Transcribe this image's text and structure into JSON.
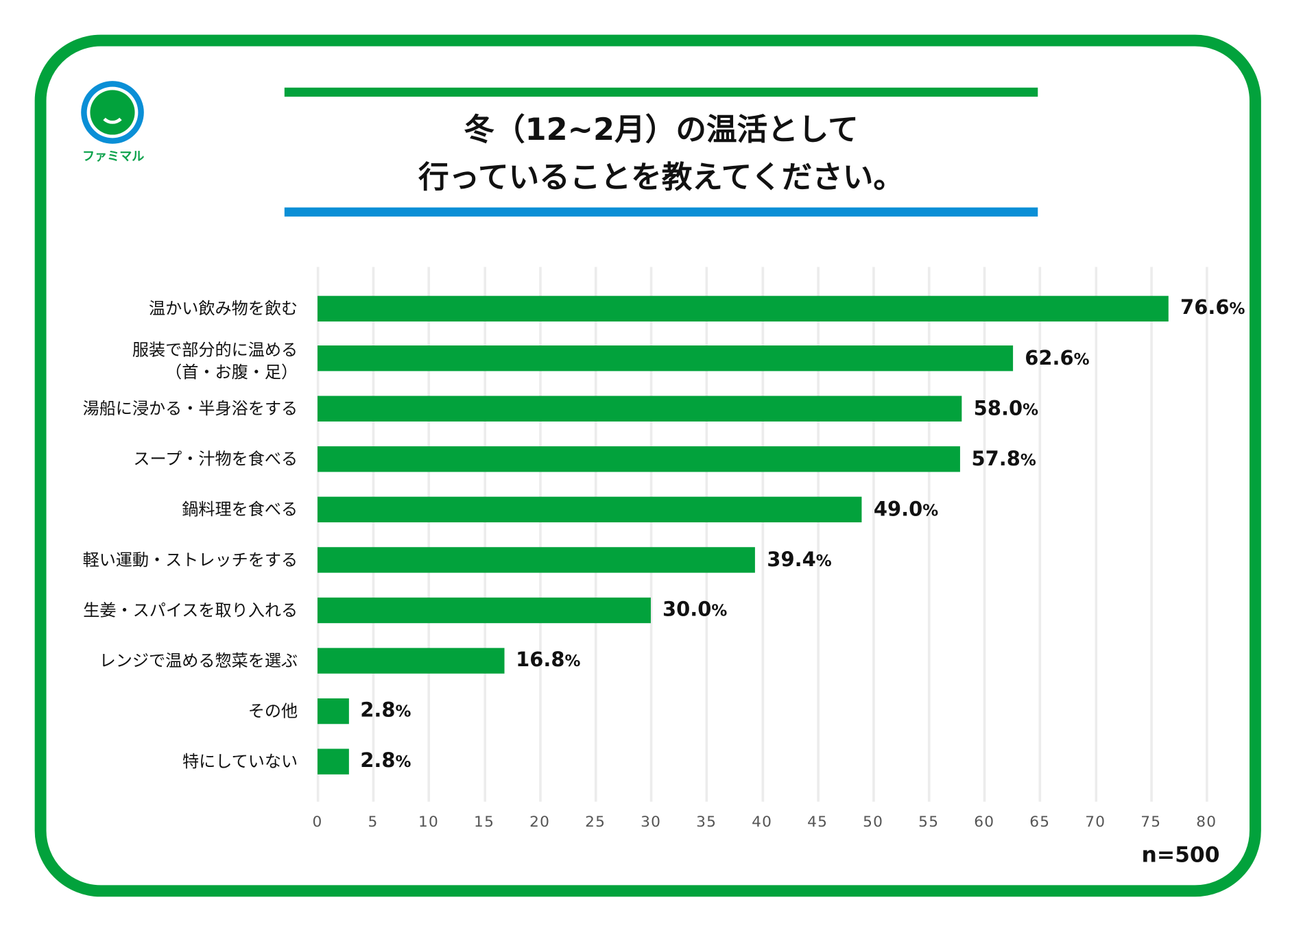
{
  "logo": {
    "text": "ファミマル"
  },
  "title": {
    "line1": "冬（12~2月）の温活として",
    "line2": "行っていることを教えてください。"
  },
  "colors": {
    "bar": "#02a23c",
    "frame": "#02a23c",
    "accent_blue": "#0a8fd6"
  },
  "note": "n=500",
  "chart_data": {
    "type": "bar",
    "orientation": "horizontal",
    "categories": [
      "温かい飲み物を飲む",
      "服装で部分的に温める\n（首・お腹・足）",
      "湯船に浸かる・半身浴をする",
      "スープ・汁物を食べる",
      "鍋料理を食べる",
      "軽い運動・ストレッチをする",
      "生姜・スパイスを取り入れる",
      "レンジで温める惣菜を選ぶ",
      "その他",
      "特にしていない"
    ],
    "values": [
      76.6,
      62.6,
      58.0,
      57.8,
      49.0,
      39.4,
      30.0,
      16.8,
      2.8,
      2.8
    ],
    "value_labels": [
      "76.6",
      "62.6",
      "58.0",
      "57.8",
      "49.0",
      "39.4",
      "30.0",
      "16.8",
      "2.8",
      "2.8"
    ],
    "value_suffix": "%",
    "xlim": [
      0,
      80
    ],
    "xticks": [
      0,
      5,
      10,
      15,
      20,
      25,
      30,
      35,
      40,
      45,
      50,
      55,
      60,
      65,
      70,
      75,
      80
    ],
    "grid": true,
    "title": "冬（12~2月）の温活として行っていることを教えてください。"
  }
}
